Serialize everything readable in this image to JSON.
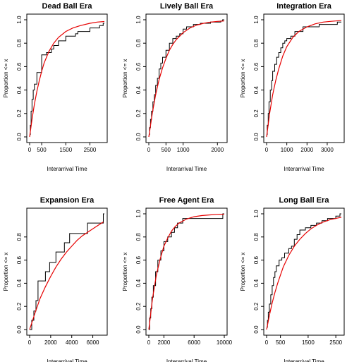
{
  "figure": {
    "colors": {
      "ecdf": "#000000",
      "fit": "#e60000",
      "frame": "#000000"
    }
  },
  "chart_data": [
    {
      "type": "line",
      "title": "Dead Ball Era",
      "xlabel": "Interarrival Time",
      "ylabel": "Proportion <= x",
      "xlim": [
        0,
        3100
      ],
      "ylim": [
        0,
        1.0
      ],
      "xticks": [
        0,
        500,
        1500,
        2500
      ],
      "yticks": [
        0.0,
        0.2,
        0.4,
        0.6,
        0.8,
        1.0
      ],
      "series": [
        {
          "kind": "ecdf",
          "x": [
            0,
            30,
            60,
            100,
            150,
            200,
            300,
            500,
            700,
            900,
            1000,
            1200,
            1500,
            1900,
            2000,
            2500,
            2900,
            3050
          ],
          "y": [
            0.02,
            0.1,
            0.22,
            0.32,
            0.4,
            0.45,
            0.55,
            0.7,
            0.72,
            0.75,
            0.78,
            0.82,
            0.86,
            0.88,
            0.9,
            0.93,
            0.95,
            0.97
          ]
        },
        {
          "kind": "fit",
          "x": [
            0,
            100,
            200,
            300,
            400,
            500,
            600,
            800,
            1000,
            1200,
            1500,
            1800,
            2100,
            2500,
            2800,
            3100
          ],
          "y": [
            0.0,
            0.15,
            0.28,
            0.39,
            0.48,
            0.56,
            0.63,
            0.73,
            0.8,
            0.85,
            0.9,
            0.93,
            0.95,
            0.97,
            0.98,
            0.985
          ]
        }
      ]
    },
    {
      "type": "line",
      "title": "Lively Ball Era",
      "xlabel": "Interarrival Time",
      "ylabel": "Proportion <= x",
      "xlim": [
        0,
        2200
      ],
      "ylim": [
        0,
        1.0
      ],
      "xticks": [
        0,
        500,
        1000,
        2000
      ],
      "yticks": [
        0.0,
        0.2,
        0.4,
        0.6,
        0.8,
        1.0
      ],
      "series": [
        {
          "kind": "ecdf",
          "x": [
            0,
            20,
            50,
            80,
            120,
            160,
            200,
            250,
            300,
            350,
            400,
            500,
            600,
            700,
            800,
            900,
            1000,
            1100,
            1300,
            1500,
            1800,
            2100,
            2150
          ],
          "y": [
            0.02,
            0.08,
            0.15,
            0.22,
            0.3,
            0.36,
            0.44,
            0.5,
            0.58,
            0.63,
            0.68,
            0.74,
            0.8,
            0.84,
            0.86,
            0.88,
            0.92,
            0.94,
            0.96,
            0.97,
            0.98,
            0.99,
            1.0
          ]
        },
        {
          "kind": "fit",
          "x": [
            0,
            100,
            200,
            300,
            400,
            500,
            600,
            700,
            800,
            1000,
            1200,
            1400,
            1600,
            1800,
            2000,
            2200
          ],
          "y": [
            0.0,
            0.2,
            0.36,
            0.49,
            0.59,
            0.67,
            0.74,
            0.79,
            0.83,
            0.89,
            0.93,
            0.955,
            0.97,
            0.98,
            0.986,
            0.99
          ]
        }
      ]
    },
    {
      "type": "line",
      "title": "Integration Era",
      "xlabel": "Interarrival Time",
      "ylabel": "Proportion <= x",
      "xlim": [
        0,
        3700
      ],
      "ylim": [
        0,
        1.0
      ],
      "xticks": [
        0,
        1000,
        2000,
        3000
      ],
      "yticks": [
        0.0,
        0.2,
        0.4,
        0.6,
        0.8,
        1.0
      ],
      "series": [
        {
          "kind": "ecdf",
          "x": [
            0,
            30,
            80,
            120,
            180,
            250,
            300,
            400,
            500,
            600,
            700,
            800,
            900,
            1000,
            1200,
            1400,
            1800,
            2600,
            3500
          ],
          "y": [
            0.02,
            0.1,
            0.2,
            0.3,
            0.4,
            0.48,
            0.56,
            0.62,
            0.68,
            0.72,
            0.76,
            0.8,
            0.82,
            0.84,
            0.86,
            0.9,
            0.94,
            0.96,
            0.98
          ]
        },
        {
          "kind": "fit",
          "x": [
            0,
            150,
            300,
            450,
            600,
            800,
            1000,
            1300,
            1600,
            2000,
            2400,
            2800,
            3200,
            3600,
            3700
          ],
          "y": [
            0.0,
            0.2,
            0.36,
            0.48,
            0.58,
            0.69,
            0.77,
            0.85,
            0.9,
            0.94,
            0.965,
            0.98,
            0.987,
            0.992,
            0.993
          ]
        }
      ]
    },
    {
      "type": "line",
      "title": "Expansion Era",
      "xlabel": "Interarrival Time",
      "ylabel": "Proportion <= x",
      "xlim": [
        0,
        7100
      ],
      "ylim": [
        0,
        1.0
      ],
      "xticks": [
        0,
        2000,
        4000,
        6000
      ],
      "yticks": [
        0.0,
        0.2,
        0.4,
        0.6,
        0.8
      ],
      "series": [
        {
          "kind": "ecdf",
          "x": [
            0,
            200,
            400,
            600,
            800,
            1100,
            1500,
            1900,
            2500,
            3300,
            3800,
            4400,
            5500,
            7000
          ],
          "y": [
            0.0,
            0.08,
            0.16,
            0.25,
            0.42,
            0.42,
            0.5,
            0.58,
            0.67,
            0.75,
            0.83,
            0.83,
            0.92,
            1.0
          ]
        },
        {
          "kind": "fit",
          "x": [
            0,
            500,
            1000,
            1500,
            2000,
            2500,
            3000,
            3500,
            4000,
            4500,
            5000,
            5500,
            6000,
            6500,
            7000
          ],
          "y": [
            0.0,
            0.14,
            0.27,
            0.37,
            0.46,
            0.54,
            0.61,
            0.67,
            0.72,
            0.77,
            0.81,
            0.84,
            0.87,
            0.9,
            0.93
          ]
        }
      ]
    },
    {
      "type": "line",
      "title": "Free Agent Era",
      "xlabel": "Interarrival Time",
      "ylabel": "Proportion <= x",
      "xlim": [
        0,
        10000
      ],
      "ylim": [
        0,
        1.0
      ],
      "xticks": [
        0,
        2000,
        6000,
        10000
      ],
      "yticks": [
        0.0,
        0.2,
        0.4,
        0.6,
        0.8,
        1.0
      ],
      "series": [
        {
          "kind": "ecdf",
          "x": [
            0,
            100,
            250,
            400,
            600,
            900,
            1200,
            1600,
            2000,
            2500,
            3000,
            3400,
            3800,
            4500,
            9800
          ],
          "y": [
            0.0,
            0.1,
            0.18,
            0.28,
            0.38,
            0.5,
            0.6,
            0.68,
            0.76,
            0.8,
            0.84,
            0.88,
            0.92,
            0.96,
            1.0
          ]
        },
        {
          "kind": "fit",
          "x": [
            0,
            500,
            1000,
            1500,
            2000,
            2500,
            3000,
            3500,
            4000,
            5000,
            6000,
            7000,
            8000,
            9000,
            10000
          ],
          "y": [
            0.0,
            0.27,
            0.47,
            0.61,
            0.72,
            0.79,
            0.85,
            0.89,
            0.92,
            0.955,
            0.975,
            0.985,
            0.99,
            0.995,
            0.997
          ]
        }
      ]
    },
    {
      "type": "line",
      "title": "Long Ball Era",
      "xlabel": "Interarrival Time",
      "ylabel": "Proportion <= x",
      "xlim": [
        0,
        2700
      ],
      "ylim": [
        0,
        1.0
      ],
      "xticks": [
        0,
        500,
        1500,
        2500
      ],
      "yticks": [
        0.0,
        0.2,
        0.4,
        0.6,
        0.8,
        1.0
      ],
      "series": [
        {
          "kind": "ecdf",
          "x": [
            0,
            30,
            60,
            100,
            150,
            200,
            250,
            300,
            350,
            450,
            550,
            650,
            800,
            900,
            1000,
            1100,
            1200,
            1400,
            1600,
            1800,
            2000,
            2200,
            2500,
            2650
          ],
          "y": [
            0.02,
            0.08,
            0.15,
            0.22,
            0.3,
            0.38,
            0.45,
            0.5,
            0.55,
            0.6,
            0.62,
            0.66,
            0.7,
            0.72,
            0.78,
            0.82,
            0.86,
            0.88,
            0.9,
            0.92,
            0.94,
            0.96,
            0.98,
            1.0
          ]
        },
        {
          "kind": "fit",
          "x": [
            0,
            100,
            200,
            300,
            400,
            500,
            600,
            800,
            1000,
            1200,
            1400,
            1600,
            1800,
            2000,
            2300,
            2600,
            2700
          ],
          "y": [
            0.0,
            0.12,
            0.23,
            0.32,
            0.4,
            0.47,
            0.54,
            0.64,
            0.72,
            0.78,
            0.83,
            0.87,
            0.9,
            0.925,
            0.95,
            0.965,
            0.97
          ]
        }
      ]
    }
  ]
}
